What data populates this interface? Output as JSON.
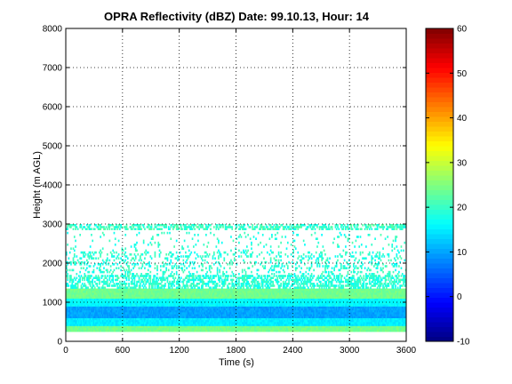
{
  "chart_data": {
    "type": "heatmap",
    "title": "OPRA Reflectivity (dBZ)  Date: 99.10.13, Hour: 14",
    "xlabel": "Time (s)",
    "ylabel": "Height (m AGL)",
    "xlim": [
      0,
      3600
    ],
    "ylim": [
      0,
      8000
    ],
    "x_ticks": [
      "0",
      "600",
      "1200",
      "1800",
      "2400",
      "3000",
      "3600"
    ],
    "y_ticks": [
      "0",
      "1000",
      "2000",
      "3000",
      "4000",
      "5000",
      "6000",
      "7000",
      "8000"
    ],
    "grid": true,
    "colorbar": {
      "colormap": "jet",
      "range": [
        -10,
        60
      ],
      "ticks": [
        "-10",
        "0",
        "10",
        "20",
        "30",
        "40",
        "50",
        "60"
      ]
    },
    "layers": [
      {
        "height_range_m": [
          250,
          400
        ],
        "approx_dbz": 24,
        "coverage": "continuous"
      },
      {
        "height_range_m": [
          400,
          600
        ],
        "approx_dbz": 15,
        "coverage": "continuous"
      },
      {
        "height_range_m": [
          600,
          900
        ],
        "approx_dbz": 10,
        "coverage": "continuous"
      },
      {
        "height_range_m": [
          900,
          1100
        ],
        "approx_dbz": 16,
        "coverage": "continuous"
      },
      {
        "height_range_m": [
          1100,
          1350
        ],
        "approx_dbz": 24,
        "coverage": "continuous"
      },
      {
        "height_range_m": [
          1350,
          1700
        ],
        "approx_dbz": 19,
        "coverage": "patchy"
      },
      {
        "height_range_m": [
          1700,
          2300
        ],
        "approx_dbz": 19,
        "coverage": "sparse"
      },
      {
        "height_range_m": [
          2300,
          2800
        ],
        "approx_dbz": 19,
        "coverage": "very sparse"
      },
      {
        "height_range_m": [
          2850,
          3000
        ],
        "approx_dbz": 20,
        "coverage": "patchy"
      }
    ]
  }
}
